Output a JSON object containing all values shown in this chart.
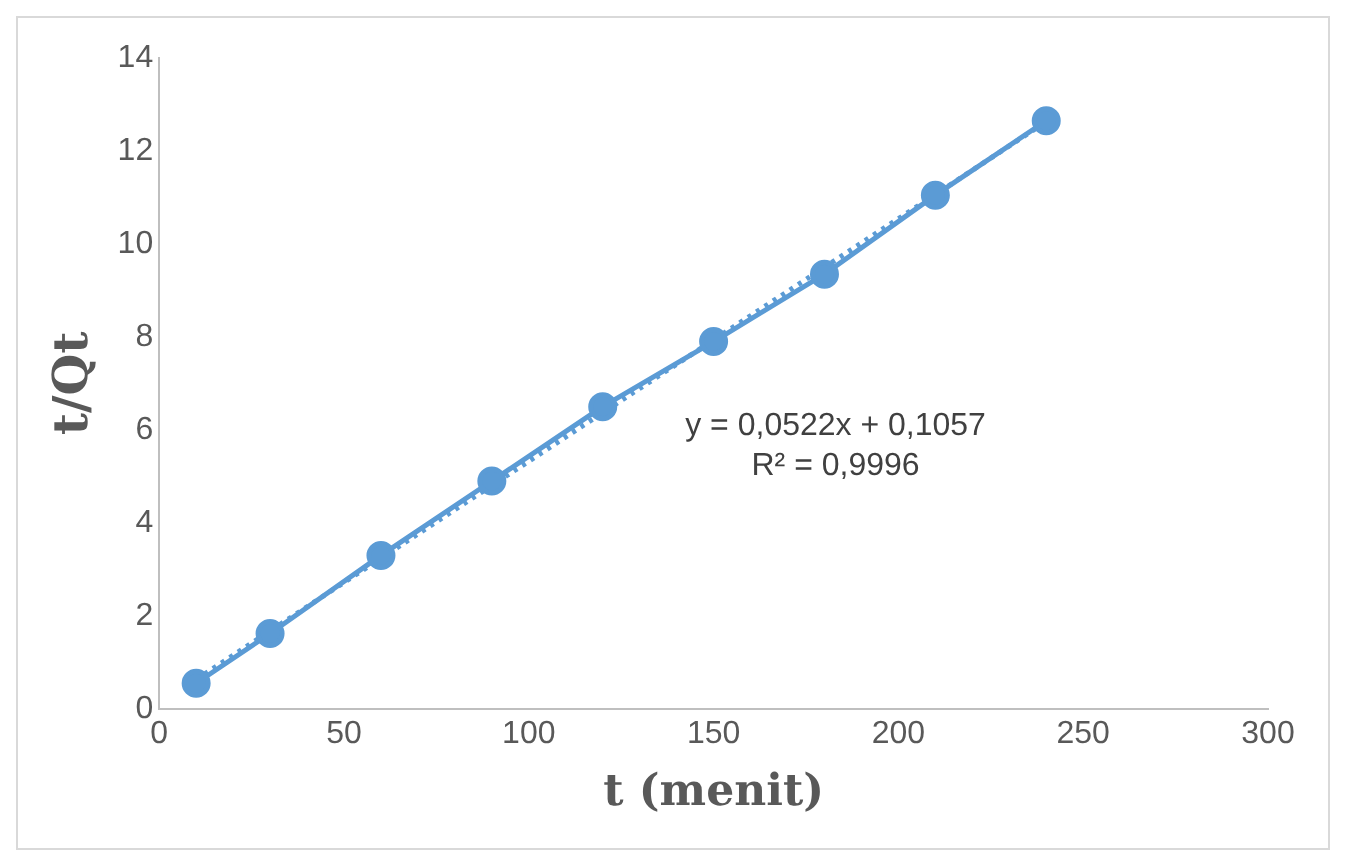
{
  "chart_data": {
    "type": "line",
    "xlabel": "t (menit)",
    "ylabel": "t/Qt",
    "xlim": [
      0,
      300
    ],
    "xticks": [
      0,
      50,
      100,
      150,
      200,
      250,
      300
    ],
    "ylim": [
      0,
      14
    ],
    "yticks": [
      0,
      2,
      4,
      6,
      8,
      10,
      12,
      14
    ],
    "series": [
      {
        "color": "#5b9bd5",
        "x": [
          10,
          30,
          60,
          90,
          120,
          150,
          180,
          210,
          240
        ],
        "values": [
          0.55,
          1.62,
          3.3,
          4.9,
          6.5,
          7.9,
          9.35,
          11.05,
          12.65
        ],
        "marker": "circle",
        "line_style": "solid"
      },
      {
        "color": "#5b9bd5",
        "x": [
          10,
          240
        ],
        "values": [
          0.63,
          12.63
        ],
        "line_style": "dotted"
      }
    ],
    "annotations": [
      "y = 0,0522x + 0,1057",
      "R² = 0,9996"
    ],
    "grid": false,
    "legend": false
  }
}
